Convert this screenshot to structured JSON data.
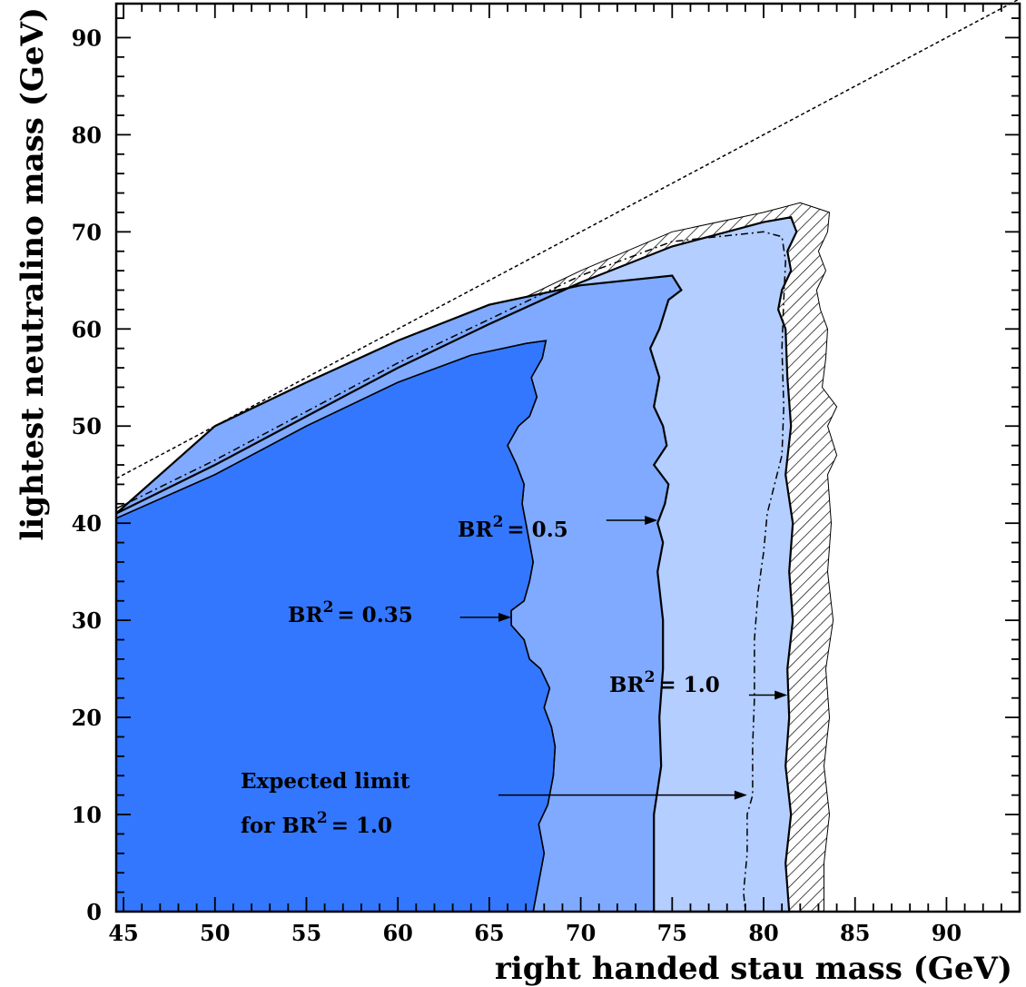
{
  "chart_data": {
    "type": "area",
    "xlabel": "right handed stau mass (GeV)",
    "ylabel": "lightest neutralino mass (GeV)",
    "xlim": [
      44.6,
      94
    ],
    "ylim": [
      0,
      93.5
    ],
    "xticks": [
      "45",
      "50",
      "55",
      "60",
      "65",
      "70",
      "75",
      "80",
      "85",
      "90"
    ],
    "xtick_values": [
      45,
      50,
      55,
      60,
      65,
      70,
      75,
      80,
      85,
      90
    ],
    "yticks": [
      "0",
      "10",
      "20",
      "30",
      "40",
      "50",
      "60",
      "70",
      "80",
      "90"
    ],
    "ytick_values": [
      0,
      10,
      20,
      30,
      40,
      50,
      60,
      70,
      80,
      90
    ],
    "colors": {
      "br035": "#3377ff",
      "br05": "#7faaff",
      "br10": "#b3ceff",
      "outer": "#d1e0ff"
    },
    "diagonal": [
      [
        44.6,
        44.6
      ],
      [
        94,
        94
      ]
    ],
    "regions": [
      {
        "name": "BR2 = 0.35",
        "color_key": "br035",
        "points": [
          [
            44.6,
            40.5
          ],
          [
            50,
            45
          ],
          [
            55,
            50
          ],
          [
            60,
            54.5
          ],
          [
            64,
            57.3
          ],
          [
            67,
            58.5
          ],
          [
            68.1,
            58.8
          ],
          [
            67.9,
            57
          ],
          [
            67.3,
            55
          ],
          [
            67.6,
            53
          ],
          [
            67.2,
            51
          ],
          [
            66.6,
            50
          ],
          [
            66,
            48
          ],
          [
            66.5,
            46
          ],
          [
            66.9,
            44
          ],
          [
            66.8,
            42
          ],
          [
            67,
            40
          ],
          [
            67.2,
            38
          ],
          [
            67.4,
            36
          ],
          [
            67.2,
            34
          ],
          [
            66.9,
            32
          ],
          [
            66.2,
            31
          ],
          [
            66.2,
            29.5
          ],
          [
            66.9,
            28
          ],
          [
            67.2,
            26
          ],
          [
            67.8,
            25
          ],
          [
            68.3,
            23
          ],
          [
            68,
            21
          ],
          [
            68.4,
            19
          ],
          [
            68.6,
            17
          ],
          [
            68.5,
            14
          ],
          [
            68.2,
            11
          ],
          [
            67.7,
            9
          ],
          [
            68,
            6
          ],
          [
            67.7,
            3
          ],
          [
            67.4,
            0
          ],
          [
            44.6,
            0
          ]
        ]
      },
      {
        "name": "BR2 = 0.5",
        "color_key": "br05",
        "points": [
          [
            44.6,
            40.5
          ],
          [
            50,
            45
          ],
          [
            55,
            50
          ],
          [
            60,
            54.5
          ],
          [
            64,
            57.3
          ],
          [
            67,
            58.5
          ],
          [
            68.1,
            58.8
          ],
          [
            67.9,
            57
          ],
          [
            67.3,
            55
          ],
          [
            67.6,
            53
          ],
          [
            67.2,
            51
          ],
          [
            66.6,
            50
          ],
          [
            66,
            48
          ],
          [
            66.5,
            46
          ],
          [
            66.9,
            44
          ],
          [
            66.8,
            42
          ],
          [
            67,
            40
          ],
          [
            67.2,
            38
          ],
          [
            67.4,
            36
          ],
          [
            67.2,
            34
          ],
          [
            66.9,
            32
          ],
          [
            66.2,
            31
          ],
          [
            66.2,
            29.5
          ],
          [
            66.9,
            28
          ],
          [
            67.2,
            26
          ],
          [
            67.8,
            25
          ],
          [
            68.3,
            23
          ],
          [
            68,
            21
          ],
          [
            68.4,
            19
          ],
          [
            68.6,
            17
          ],
          [
            68.5,
            14
          ],
          [
            68.2,
            11
          ],
          [
            67.7,
            9
          ],
          [
            68,
            6
          ],
          [
            67.7,
            3
          ],
          [
            67.4,
            0
          ],
          [
            74,
            0
          ],
          [
            74,
            5
          ],
          [
            74,
            10
          ],
          [
            74.4,
            15
          ],
          [
            74.3,
            20
          ],
          [
            74.5,
            25
          ],
          [
            74.5,
            30
          ],
          [
            74.2,
            35
          ],
          [
            74.5,
            38
          ],
          [
            74.2,
            40
          ],
          [
            74.6,
            42
          ],
          [
            74.8,
            44
          ],
          [
            74,
            46
          ],
          [
            74.7,
            48
          ],
          [
            74.5,
            50
          ],
          [
            74,
            52
          ],
          [
            74.3,
            55
          ],
          [
            73.8,
            58
          ],
          [
            74.3,
            60
          ],
          [
            74.8,
            63
          ],
          [
            75.5,
            64
          ],
          [
            75,
            65.5
          ],
          [
            70,
            64.5
          ],
          [
            65,
            62.5
          ],
          [
            60,
            58.8
          ],
          [
            55,
            54.5
          ],
          [
            50,
            50
          ],
          [
            44.6,
            41
          ]
        ]
      },
      {
        "name": "BR2 = 1.0",
        "color_key": "br10",
        "points": [
          [
            44.6,
            41
          ],
          [
            50,
            46
          ],
          [
            55,
            51
          ],
          [
            60,
            56
          ],
          [
            65,
            60.5
          ],
          [
            70,
            64.8
          ],
          [
            75,
            68.5
          ],
          [
            80,
            71
          ],
          [
            81.5,
            71.5
          ],
          [
            81.8,
            70
          ],
          [
            81.3,
            68
          ],
          [
            81.5,
            66
          ],
          [
            81,
            64
          ],
          [
            80.8,
            62
          ],
          [
            81.2,
            60
          ],
          [
            81.3,
            55
          ],
          [
            81.5,
            50
          ],
          [
            81.2,
            45
          ],
          [
            81.6,
            40
          ],
          [
            81.4,
            35
          ],
          [
            81.6,
            30
          ],
          [
            81.3,
            25
          ],
          [
            81.4,
            20
          ],
          [
            81.2,
            15
          ],
          [
            81.5,
            10
          ],
          [
            81.2,
            5
          ],
          [
            81.4,
            0
          ],
          [
            74,
            0
          ],
          [
            74,
            5
          ],
          [
            74,
            10
          ],
          [
            74.4,
            15
          ],
          [
            74.3,
            20
          ],
          [
            74.5,
            25
          ],
          [
            74.5,
            30
          ],
          [
            74.2,
            35
          ],
          [
            74.5,
            38
          ],
          [
            74.2,
            40
          ],
          [
            74.6,
            42
          ],
          [
            74.8,
            44
          ],
          [
            74,
            46
          ],
          [
            74.7,
            48
          ],
          [
            74.5,
            50
          ],
          [
            74,
            52
          ],
          [
            74.3,
            55
          ],
          [
            73.8,
            58
          ],
          [
            74.3,
            60
          ],
          [
            74.8,
            63
          ],
          [
            75.5,
            64
          ],
          [
            75,
            65.5
          ],
          [
            70,
            64.5
          ],
          [
            65,
            62.5
          ],
          [
            60,
            58.8
          ],
          [
            55,
            54.5
          ],
          [
            50,
            50
          ],
          [
            44.6,
            41
          ]
        ]
      }
    ],
    "expected_limit": [
      [
        44.6,
        41.5
      ],
      [
        50,
        46.5
      ],
      [
        55,
        51.5
      ],
      [
        60,
        56.5
      ],
      [
        65,
        61
      ],
      [
        70,
        65.5
      ],
      [
        75,
        69
      ],
      [
        80,
        70
      ],
      [
        81,
        69.5
      ],
      [
        81.2,
        67
      ],
      [
        81.1,
        63
      ],
      [
        81,
        58
      ],
      [
        81.1,
        52
      ],
      [
        81,
        47
      ],
      [
        80.6,
        44
      ],
      [
        80.2,
        41
      ],
      [
        80,
        37
      ],
      [
        79.7,
        33
      ],
      [
        79.5,
        28
      ],
      [
        79.5,
        22
      ],
      [
        79.4,
        17
      ],
      [
        79.4,
        12
      ],
      [
        79.1,
        10
      ],
      [
        79.1,
        6
      ],
      [
        78.9,
        2
      ],
      [
        79,
        0
      ]
    ],
    "hatched_band": [
      [
        44.6,
        41.5
      ],
      [
        50,
        46.5
      ],
      [
        55,
        51.5
      ],
      [
        60,
        56.8
      ],
      [
        65,
        61.5
      ],
      [
        70,
        66
      ],
      [
        75,
        70
      ],
      [
        80,
        72
      ],
      [
        82,
        73
      ],
      [
        83.6,
        72
      ],
      [
        83.5,
        70
      ],
      [
        83,
        68
      ],
      [
        83.4,
        66
      ],
      [
        82.9,
        64
      ],
      [
        83.1,
        62
      ],
      [
        83.5,
        60
      ],
      [
        83.4,
        57
      ],
      [
        83.2,
        54
      ],
      [
        84,
        52
      ],
      [
        83.5,
        50
      ],
      [
        84,
        47
      ],
      [
        83.5,
        45
      ],
      [
        83.7,
        40
      ],
      [
        83.5,
        35
      ],
      [
        83.8,
        30
      ],
      [
        83.4,
        25
      ],
      [
        83.6,
        20
      ],
      [
        83.3,
        15
      ],
      [
        83.6,
        10
      ],
      [
        83.3,
        5
      ],
      [
        83.3,
        0
      ],
      [
        80.2,
        0
      ],
      [
        80.3,
        5
      ],
      [
        80.1,
        10
      ],
      [
        80.3,
        15
      ],
      [
        80.2,
        20
      ],
      [
        80.4,
        25
      ],
      [
        80.5,
        30
      ],
      [
        80.4,
        35
      ],
      [
        80.5,
        40
      ],
      [
        80.1,
        45
      ],
      [
        80.4,
        50
      ],
      [
        80.5,
        55
      ],
      [
        80.4,
        60
      ],
      [
        80.8,
        64
      ],
      [
        81,
        66
      ],
      [
        80.5,
        68
      ],
      [
        80,
        70
      ],
      [
        75,
        68.5
      ],
      [
        70,
        64.8
      ],
      [
        65,
        60.5
      ],
      [
        60,
        56
      ],
      [
        55,
        51
      ],
      [
        50,
        46
      ],
      [
        44.6,
        41
      ]
    ],
    "annotations": [
      {
        "text": "BR",
        "exp": "2",
        "tail": "= 0.5",
        "text_at": [
          63.5,
          39.8
        ],
        "arrow_from": [
          71.4,
          40.3
        ],
        "arrow_to": [
          74.2,
          40.3
        ]
      },
      {
        "text": "BR",
        "exp": "2",
        "tail": "= 0.35",
        "text_at": [
          53.6,
          29.7
        ],
        "arrow_from": [
          63.4,
          30.3
        ],
        "arrow_to": [
          66.2,
          30.3
        ]
      },
      {
        "text": "BR",
        "exp": "2",
        "tail": "= 1.0",
        "text_at": [
          71.8,
          21.7
        ],
        "arrow_from": [
          79.2,
          22.3
        ],
        "arrow_to": [
          81.3,
          22.3
        ]
      },
      {
        "text": "Expected limit",
        "text_at": [
          66,
          15
        ],
        "line2": "for  BR",
        "exp": "2",
        "tail": "= 1.0",
        "line2_at": [
          66,
          10.3
        ],
        "arrow_from": [
          65.5,
          12
        ],
        "arrow_to": [
          79.1,
          12
        ]
      }
    ]
  },
  "labels": {
    "xlabel": "right handed stau mass (GeV)",
    "ylabel": "lightest neutralino mass (GeV)",
    "ann1_main": "BR",
    "ann1_exp": "2",
    "ann1_tail": "= 0.5",
    "ann2_main": "BR",
    "ann2_exp": "2",
    "ann2_tail": "= 0.35",
    "ann3_main": "BR",
    "ann3_exp": "2",
    "ann3_tail": "= 1.0",
    "ann4_line1": "Expected limit",
    "ann4_main": "for  BR",
    "ann4_exp": "2",
    "ann4_tail": "= 1.0"
  }
}
